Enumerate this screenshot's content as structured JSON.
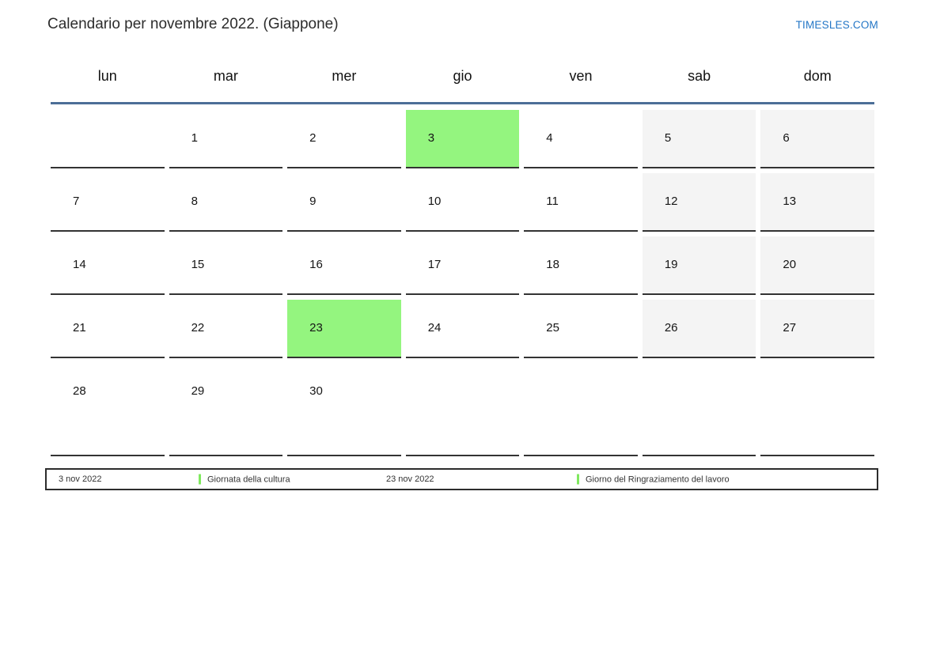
{
  "page": {
    "title": "Calendario per novembre 2022. (Giappone)",
    "brand": "TIMESLES.COM"
  },
  "colors": {
    "holiday_green": "#94f57f",
    "weekend_gray": "#f4f4f4",
    "header_line": "#4c6e97",
    "cell_border": "#333333",
    "brand_blue": "#2376c6",
    "legend_marker": "#80e95f"
  },
  "calendar": {
    "weekday_headers": [
      "lun",
      "mar",
      "mer",
      "gio",
      "ven",
      "sab",
      "dom"
    ],
    "weeks": [
      [
        {
          "day": "",
          "type": "empty"
        },
        {
          "day": "1",
          "type": "normal"
        },
        {
          "day": "2",
          "type": "normal"
        },
        {
          "day": "3",
          "type": "holiday"
        },
        {
          "day": "4",
          "type": "normal"
        },
        {
          "day": "5",
          "type": "weekend"
        },
        {
          "day": "6",
          "type": "weekend"
        }
      ],
      [
        {
          "day": "7",
          "type": "normal"
        },
        {
          "day": "8",
          "type": "normal"
        },
        {
          "day": "9",
          "type": "normal"
        },
        {
          "day": "10",
          "type": "normal"
        },
        {
          "day": "11",
          "type": "normal"
        },
        {
          "day": "12",
          "type": "weekend"
        },
        {
          "day": "13",
          "type": "weekend"
        }
      ],
      [
        {
          "day": "14",
          "type": "normal"
        },
        {
          "day": "15",
          "type": "normal"
        },
        {
          "day": "16",
          "type": "normal"
        },
        {
          "day": "17",
          "type": "normal"
        },
        {
          "day": "18",
          "type": "normal"
        },
        {
          "day": "19",
          "type": "weekend"
        },
        {
          "day": "20",
          "type": "weekend"
        }
      ],
      [
        {
          "day": "21",
          "type": "normal"
        },
        {
          "day": "22",
          "type": "normal"
        },
        {
          "day": "23",
          "type": "holiday"
        },
        {
          "day": "24",
          "type": "normal"
        },
        {
          "day": "25",
          "type": "normal"
        },
        {
          "day": "26",
          "type": "weekend"
        },
        {
          "day": "27",
          "type": "weekend"
        }
      ],
      [
        {
          "day": "28",
          "type": "normal"
        },
        {
          "day": "29",
          "type": "normal"
        },
        {
          "day": "30",
          "type": "normal"
        },
        {
          "day": "",
          "type": "empty"
        },
        {
          "day": "",
          "type": "empty"
        },
        {
          "day": "",
          "type": "empty"
        },
        {
          "day": "",
          "type": "empty"
        }
      ]
    ]
  },
  "legend": {
    "items": [
      {
        "date": "3 nov 2022",
        "label": "Giornata della cultura"
      },
      {
        "date": "23 nov 2022",
        "label": "Giorno del Ringraziamento del lavoro"
      }
    ]
  }
}
